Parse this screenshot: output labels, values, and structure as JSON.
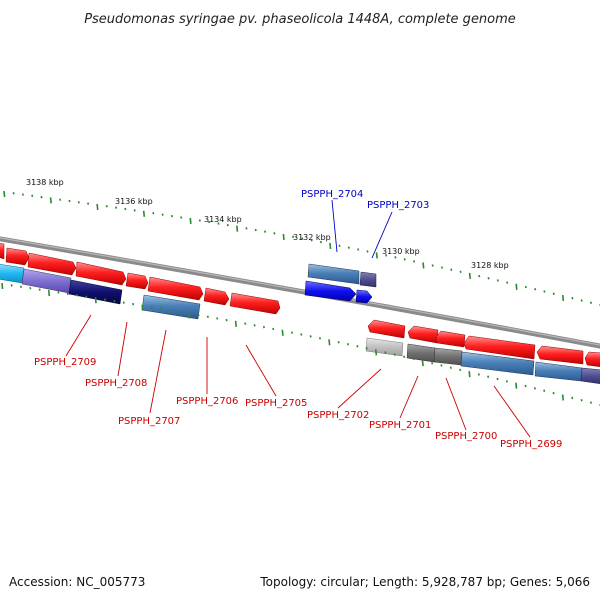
{
  "title": "Pseudomonas syringae pv. phaseolicola 1448A, complete genome",
  "footer": {
    "accession": "Accession: NC_005773",
    "summary": "Topology: circular; Length: 5,928,787 bp; Genes: 5,066"
  },
  "kbp_labels": [
    "3138 kbp",
    "3136 kbp",
    "3134 kbp",
    "3132 kbp",
    "3130 kbp",
    "3128 kbp"
  ],
  "gene_labels": {
    "above": [
      "PSPPH_2704",
      "PSPPH_2703"
    ],
    "below": [
      "PSPPH_2709",
      "PSPPH_2708",
      "PSPPH_2707",
      "PSPPH_2706",
      "PSPPH_2705",
      "PSPPH_2702",
      "PSPPH_2701",
      "PSPPH_2700",
      "PSPPH_2699"
    ]
  },
  "colors": {
    "gene_red": "#ee1111",
    "gene_steel": "#4a80b8",
    "gene_navy": "#101070",
    "gene_blue": "#1010ee",
    "gene_purple": "#8070d0",
    "gene_cyan": "#20b8f0",
    "gene_grey": "#707070",
    "gene_light_grey": "#c0c0c0",
    "backbone": "#8a8a8a",
    "tick": "#2a8a2a",
    "label_red": "#cc0000",
    "label_blue": "#0000cc"
  }
}
